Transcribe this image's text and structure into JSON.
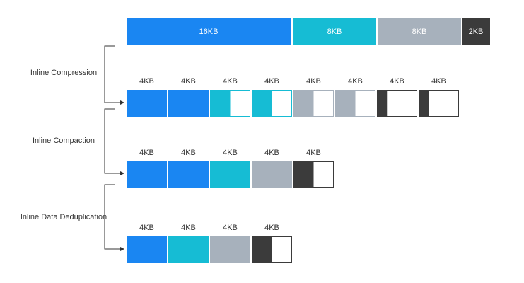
{
  "top_bar": {
    "segments": [
      "16KB",
      "8KB",
      "8KB",
      "2KB"
    ]
  },
  "stages": [
    {
      "label": "Inline Compression",
      "blocks": [
        "4KB",
        "4KB",
        "4KB",
        "4KB",
        "4KB",
        "4KB",
        "4KB",
        "4KB"
      ]
    },
    {
      "label": "Inline Compaction",
      "blocks": [
        "4KB",
        "4KB",
        "4KB",
        "4KB",
        "4KB"
      ]
    },
    {
      "label": "Inline Data Deduplication",
      "blocks": [
        "4KB",
        "4KB",
        "4KB",
        "4KB"
      ]
    }
  ]
}
